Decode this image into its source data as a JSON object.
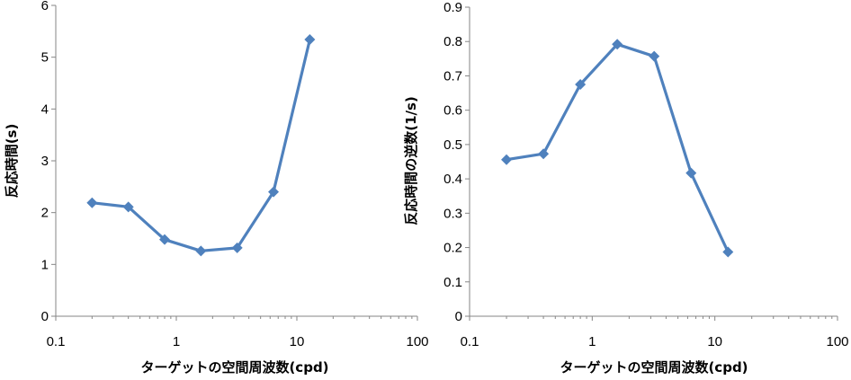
{
  "chart_data": [
    {
      "type": "line",
      "xscale": "log",
      "xlim": [
        0.1,
        100
      ],
      "ylim": [
        0,
        6
      ],
      "xticks": [
        0.1,
        1,
        10,
        100
      ],
      "xtick_labels": [
        "0.1",
        "1",
        "10",
        "100"
      ],
      "yticks": [
        0,
        1,
        2,
        3,
        4,
        5,
        6
      ],
      "ytick_labels": [
        "0",
        "1",
        "2",
        "3",
        "4",
        "5",
        "6"
      ],
      "xlabel": "ターゲットの空間周波数(cpd)",
      "ylabel": "反応時間(s)",
      "grid": false,
      "marker": "diamond",
      "color": "#4F81BD",
      "series": [
        {
          "x": [
            0.2,
            0.4,
            0.8,
            1.6,
            3.2,
            6.4,
            12.8
          ],
          "y": [
            2.19,
            2.11,
            1.48,
            1.26,
            1.32,
            2.4,
            5.34
          ]
        }
      ]
    },
    {
      "type": "line",
      "xscale": "log",
      "xlim": [
        0.1,
        100
      ],
      "ylim": [
        0,
        0.9
      ],
      "xticks": [
        0.1,
        1,
        10,
        100
      ],
      "xtick_labels": [
        "0.1",
        "1",
        "10",
        "100"
      ],
      "yticks": [
        0,
        0.1,
        0.2,
        0.3,
        0.4,
        0.5,
        0.6,
        0.7,
        0.8,
        0.9
      ],
      "ytick_labels": [
        "0",
        "0.1",
        "0.2",
        "0.3",
        "0.4",
        "0.5",
        "0.6",
        "0.7",
        "0.8",
        "0.9"
      ],
      "xlabel": "ターゲットの空間周波数(cpd)",
      "ylabel": "反応時間の逆数(1/s)",
      "grid": false,
      "marker": "diamond",
      "color": "#4F81BD",
      "series": [
        {
          "x": [
            0.2,
            0.4,
            0.8,
            1.6,
            3.2,
            6.4,
            12.8
          ],
          "y": [
            0.456,
            0.473,
            0.675,
            0.792,
            0.757,
            0.417,
            0.187
          ]
        }
      ]
    }
  ]
}
